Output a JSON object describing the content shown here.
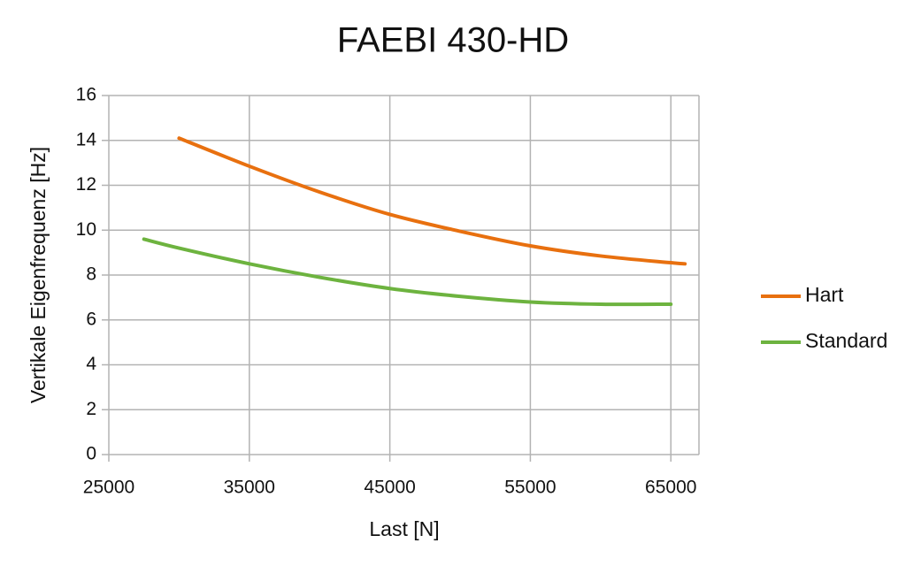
{
  "chart_data": {
    "type": "line",
    "title": "FAEBI 430-HD",
    "x_label": "Last [N]",
    "y_label": "Vertikale Eigenfrequenz [Hz]",
    "xlim": [
      25000,
      67000
    ],
    "xticks": [
      25000,
      35000,
      45000,
      55000,
      65000
    ],
    "ylim": [
      0,
      16
    ],
    "yticks": [
      0,
      2,
      4,
      6,
      8,
      10,
      12,
      14,
      16
    ],
    "grid": true,
    "legend": "right",
    "series": [
      {
        "name": "Hart",
        "color": "#e8700f",
        "x": [
          30000,
          35000,
          40000,
          45000,
          50000,
          55000,
          60000,
          65000,
          66000
        ],
        "values": [
          14.1,
          12.85,
          11.7,
          10.7,
          9.95,
          9.3,
          8.85,
          8.55,
          8.5
        ]
      },
      {
        "name": "Standard",
        "color": "#6db33f",
        "x": [
          27500,
          30000,
          35000,
          40000,
          45000,
          50000,
          55000,
          60000,
          65000
        ],
        "values": [
          9.6,
          9.2,
          8.5,
          7.9,
          7.4,
          7.05,
          6.8,
          6.7,
          6.7
        ]
      }
    ]
  }
}
